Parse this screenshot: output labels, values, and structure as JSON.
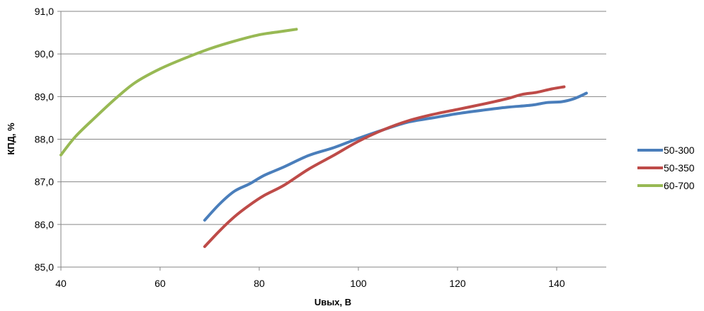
{
  "chart_data": {
    "type": "line",
    "title": "",
    "xlabel": "Uвых, В",
    "ylabel": "КПД, %",
    "xlim": [
      40,
      150
    ],
    "ylim": [
      85.0,
      91.0
    ],
    "x_ticks": [
      "40",
      "60",
      "80",
      "100",
      "120",
      "140"
    ],
    "x_tick_values": [
      40,
      60,
      80,
      100,
      120,
      140
    ],
    "y_ticks": [
      "85,0",
      "86,0",
      "87,0",
      "88,0",
      "89,0",
      "90,0",
      "91,0"
    ],
    "y_tick_values": [
      85,
      86,
      87,
      88,
      89,
      90,
      91
    ],
    "grid": "horizontal",
    "legend_position": "right",
    "series": [
      {
        "name": "50-300",
        "color": "#4a7ebb",
        "x": [
          69,
          72,
          75,
          78,
          81,
          85,
          90,
          95,
          100,
          105,
          110,
          115,
          120,
          125,
          130,
          135,
          138,
          141,
          143.5,
          146
        ],
        "y": [
          86.1,
          86.48,
          86.78,
          86.95,
          87.15,
          87.35,
          87.62,
          87.8,
          88.02,
          88.22,
          88.4,
          88.5,
          88.6,
          88.68,
          88.75,
          88.8,
          88.86,
          88.88,
          88.95,
          89.08
        ]
      },
      {
        "name": "50-350",
        "color": "#be4b48",
        "x": [
          69,
          72,
          75,
          78,
          81,
          85,
          90,
          95,
          100,
          105,
          110,
          115,
          120,
          125,
          130,
          133,
          136,
          139,
          141.5
        ],
        "y": [
          85.48,
          85.85,
          86.18,
          86.45,
          86.68,
          86.92,
          87.3,
          87.62,
          87.95,
          88.22,
          88.43,
          88.58,
          88.7,
          88.82,
          88.95,
          89.05,
          89.1,
          89.18,
          89.23
        ]
      },
      {
        "name": "60-700",
        "color": "#98b954",
        "x": [
          40,
          43,
          47,
          51,
          55,
          60,
          65,
          70,
          75,
          80,
          84,
          87.5
        ],
        "y": [
          87.63,
          88.07,
          88.52,
          88.95,
          89.33,
          89.65,
          89.9,
          90.12,
          90.3,
          90.45,
          90.52,
          90.58
        ]
      }
    ]
  }
}
